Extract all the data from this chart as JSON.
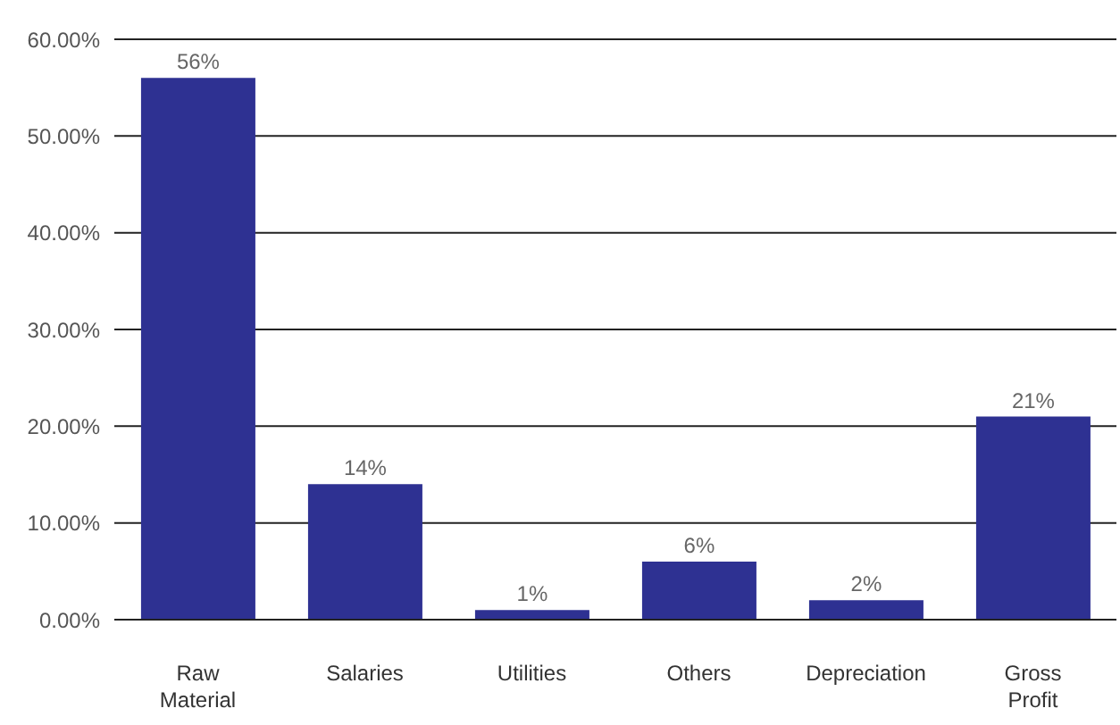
{
  "chart_data": {
    "type": "bar",
    "categories": [
      "Raw Material",
      "Salaries",
      "Utilities",
      "Others",
      "Depreciation",
      "Gross Profit"
    ],
    "values": [
      56,
      14,
      1,
      6,
      2,
      21
    ],
    "value_labels": [
      "56%",
      "14%",
      "1%",
      "6%",
      "2%",
      "21%"
    ],
    "color": "#2e3192",
    "ylim": [
      0,
      60
    ],
    "yticks": [
      {
        "value": 0,
        "label": "0.00%"
      },
      {
        "value": 10,
        "label": "10.00%"
      },
      {
        "value": 20,
        "label": "20.00%"
      },
      {
        "value": 30,
        "label": "30.00%"
      },
      {
        "value": 40,
        "label": "40.00%"
      },
      {
        "value": 50,
        "label": "50.00%"
      },
      {
        "value": 60,
        "label": "60.00%"
      }
    ],
    "grid": "y"
  }
}
